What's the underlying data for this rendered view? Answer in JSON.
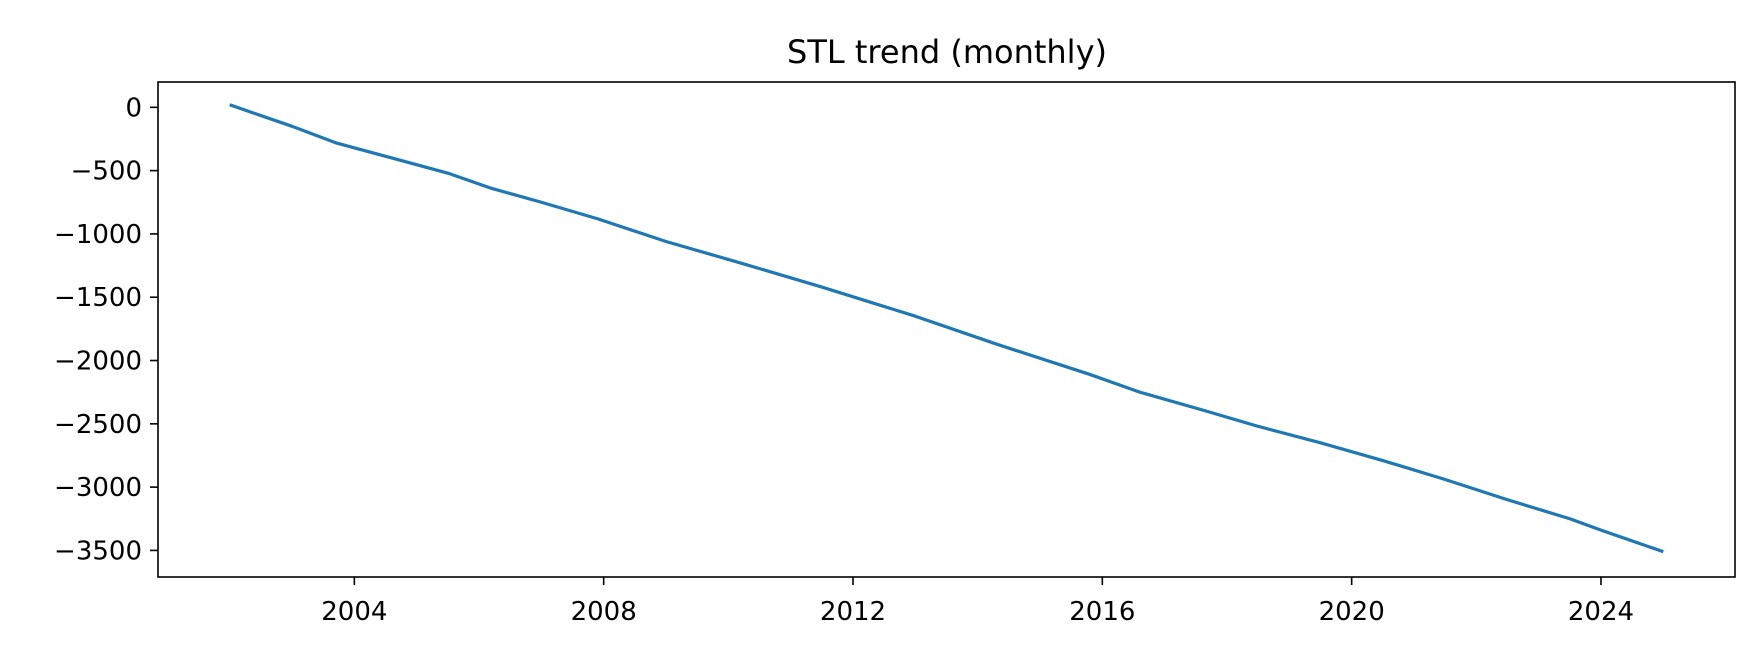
{
  "chart_data": {
    "type": "line",
    "title": "STL trend (monthly)",
    "xlabel": "",
    "ylabel": "",
    "xlim": [
      2000.85,
      2026.15
    ],
    "ylim": [
      -3710,
      200
    ],
    "x_ticks": [
      2004,
      2008,
      2012,
      2016,
      2020,
      2024
    ],
    "x_tick_labels": [
      "2004",
      "2008",
      "2012",
      "2016",
      "2020",
      "2024"
    ],
    "y_ticks": [
      0,
      -500,
      -1000,
      -1500,
      -2000,
      -2500,
      -3000,
      -3500
    ],
    "y_tick_labels": [
      "0",
      "−500",
      "−1000",
      "−1500",
      "−2000",
      "−2500",
      "−3000",
      "−3500"
    ],
    "grid": false,
    "legend": "none",
    "colors": {
      "line": "#1f77b4",
      "axes": "#000000"
    },
    "series": [
      {
        "x": [
          2002.0,
          2003.0,
          2003.7,
          2004.6,
          2005.5,
          2006.2,
          2007.0,
          2007.9,
          2009.0,
          2010.2,
          2011.5,
          2013.0,
          2014.3,
          2015.8,
          2016.6,
          2017.6,
          2018.5,
          2019.5,
          2020.5,
          2021.5,
          2022.5,
          2023.5,
          2024.0,
          2025.0
        ],
        "y": [
          20,
          -150,
          -280,
          -400,
          -520,
          -640,
          -750,
          -880,
          -1060,
          -1230,
          -1420,
          -1650,
          -1870,
          -2110,
          -2250,
          -2390,
          -2520,
          -2650,
          -2790,
          -2940,
          -3100,
          -3250,
          -3340,
          -3510
        ]
      }
    ]
  }
}
